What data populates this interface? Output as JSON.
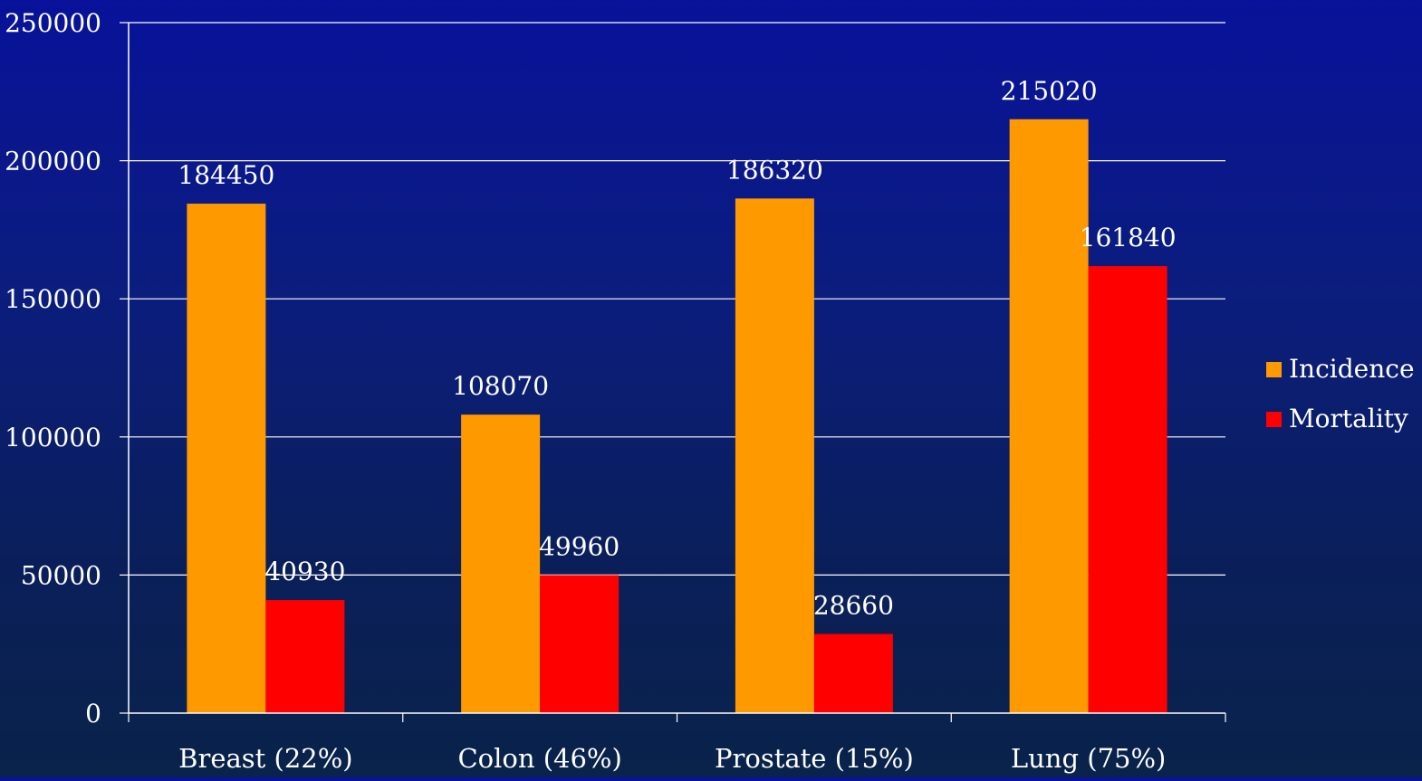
{
  "chart_data": {
    "type": "bar",
    "categories": [
      "Breast  (22%)",
      "Colon (46%)",
      "Prostate (15%)",
      "Lung (75%)"
    ],
    "series": [
      {
        "name": "Incidence",
        "color": "#ff9900",
        "values": [
          184450,
          108070,
          186320,
          215020
        ]
      },
      {
        "name": "Mortality",
        "color": "#ff0000",
        "values": [
          40930,
          49960,
          28660,
          161840
        ]
      }
    ],
    "y_ticks": [
      0,
      50000,
      100000,
      150000,
      200000,
      250000
    ],
    "ylim": [
      0,
      250000
    ],
    "grid": true,
    "legend_position": "right",
    "colors": {
      "axis": "#ffffff",
      "gridline": "#ffffff",
      "text": "#ffffff"
    }
  }
}
